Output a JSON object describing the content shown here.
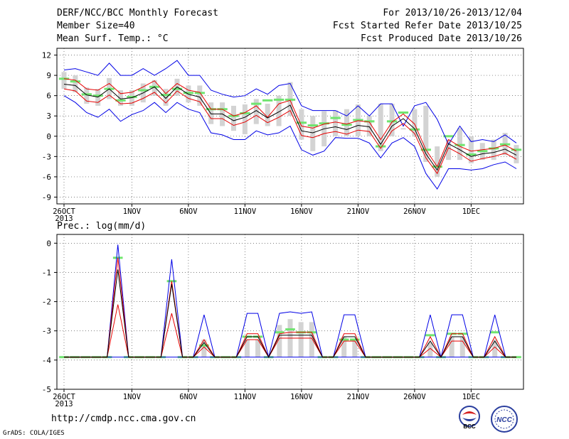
{
  "header": {
    "title": "DERF/NCC/BCC Monthly Forecast",
    "member_size": "Member Size=40",
    "variable": "Mean Surf. Temp.: °C",
    "for_range": "For 2013/10/26-2013/12/04",
    "started": "Fcst Started Refer Date 2013/10/25",
    "produced": "Fcst Produced Date 2013/10/26"
  },
  "footer": {
    "url": "http://cmdp.ncc.cma.gov.cn",
    "grads": "GrADS: COLA/IGES",
    "logo_left_text": "BCC",
    "logo_right_text": "NCC"
  },
  "colors": {
    "envelope": "#0000e6",
    "spread": "#e60000",
    "mean": "#000000",
    "median_marker": "#6fe46f",
    "box": "#d3d3d3",
    "grid": "#555555"
  },
  "chart_data": [
    {
      "type": "line",
      "title": "",
      "ylabel": "",
      "ylim": [
        -10,
        13
      ],
      "yticks": [
        12,
        9,
        6,
        3,
        0,
        -3,
        -6,
        -9
      ],
      "grid": true,
      "x_tick_labels": [
        "26OCT\n2013",
        "1NOV",
        "6NOV",
        "11NOV",
        "16NOV",
        "21NOV",
        "26NOV",
        "1DEC"
      ],
      "x_tick_days": [
        0,
        6,
        11,
        16,
        21,
        26,
        31,
        36
      ],
      "x_days": 40,
      "series": [
        {
          "role": "max",
          "values": [
            9.8,
            10,
            9.5,
            9,
            10.8,
            9,
            9,
            10,
            9,
            10,
            11.2,
            9,
            9,
            6.8,
            6.2,
            5.8,
            6,
            7,
            6.2,
            7.5,
            7.8,
            4.5,
            3.8,
            3.8,
            3.8,
            3,
            4.5,
            3,
            4.8,
            4.8,
            1.5,
            4.5,
            5,
            2.5,
            -1.2,
            1.5,
            -0.8,
            -0.5,
            -0.8,
            0.2,
            -1
          ]
        },
        {
          "role": "upper",
          "values": [
            8.5,
            8.3,
            7,
            6.8,
            7.8,
            6.3,
            6.5,
            7.3,
            8.2,
            6.3,
            7.8,
            6.8,
            6.5,
            4,
            4,
            3,
            3.5,
            4.5,
            2.8,
            4.8,
            5.3,
            1.5,
            1.2,
            1.8,
            2.1,
            1.8,
            2.3,
            2.1,
            -0.5,
            2.1,
            3.3,
            1.8,
            -2,
            -4.5,
            -0.5,
            -1.5,
            -2.2,
            -2,
            -1.8,
            -1.3,
            -2.2
          ]
        },
        {
          "role": "mean",
          "values": [
            7.7,
            7.5,
            6.1,
            5.8,
            7,
            5.5,
            5.7,
            6.4,
            7.3,
            5.6,
            7.3,
            6.2,
            5.8,
            3.3,
            3.3,
            2.3,
            2.8,
            3.8,
            2.7,
            3.6,
            4.6,
            0.8,
            0.5,
            1.1,
            1.4,
            1,
            1.6,
            1.4,
            -1.2,
            1.5,
            2.6,
            1.1,
            -2.6,
            -5,
            -1.1,
            -2,
            -3,
            -2.6,
            -2.4,
            -1.9,
            -2.8
          ]
        },
        {
          "role": "lower",
          "values": [
            7,
            6.7,
            5.2,
            5,
            6.1,
            4.8,
            4.9,
            5.6,
            6.5,
            4.9,
            6.7,
            5.6,
            5.1,
            2.6,
            2.6,
            1.6,
            2.1,
            3.1,
            2,
            2.8,
            3.8,
            0.1,
            -0.2,
            0.4,
            0.7,
            0.3,
            0.9,
            0.7,
            -1.8,
            0.8,
            1.9,
            0.4,
            -3.2,
            -5.5,
            -1.7,
            -2.6,
            -3.7,
            -3.3,
            -3,
            -2.5,
            -3.4
          ]
        },
        {
          "role": "min",
          "values": [
            6,
            5,
            3.5,
            2.8,
            4,
            2.2,
            3.2,
            3.8,
            5,
            3.5,
            5,
            4,
            3.5,
            0.5,
            0.2,
            -0.5,
            -0.5,
            0.8,
            0.2,
            0.5,
            1.5,
            -2,
            -2.8,
            -2.2,
            -0.2,
            -0.3,
            -0.3,
            -1,
            -3.2,
            -1,
            -0.2,
            -1.5,
            -5.5,
            -7.8,
            -4.8,
            -4.8,
            -5,
            -4.8,
            -4.2,
            -3.8,
            -4.8
          ]
        },
        {
          "role": "box_top",
          "values": [
            9.5,
            9,
            7.2,
            7,
            8.6,
            6.8,
            6.8,
            7.8,
            8.3,
            7,
            8.5,
            7.5,
            7.5,
            5,
            5,
            4.5,
            4.7,
            5.5,
            4.8,
            6,
            8,
            4,
            3,
            3.7,
            3.8,
            4,
            4.7,
            3,
            4.8,
            4.8,
            1.2,
            4,
            4.5,
            -1.5,
            -0.5,
            1.2,
            0,
            -1,
            -0.5,
            0.5,
            -1.3
          ]
        },
        {
          "role": "box_bottom",
          "values": [
            7,
            6.5,
            4.8,
            4.5,
            5.5,
            4.5,
            4.5,
            5,
            6,
            4.5,
            6,
            5,
            4.5,
            1.8,
            1.5,
            0.8,
            0.3,
            1.8,
            1.5,
            1.5,
            3,
            -0.5,
            -2.2,
            -1.5,
            0,
            0,
            0,
            0,
            -2.2,
            0,
            1,
            0,
            -3.8,
            -6,
            -3.5,
            -3.5,
            -4,
            -3.5,
            -3.5,
            -2.8,
            -4
          ]
        },
        {
          "role": "median",
          "values": [
            8.5,
            8.1,
            6.2,
            6,
            7,
            5.3,
            5.8,
            6.8,
            7.3,
            6.1,
            7,
            6.4,
            6.4,
            4,
            4,
            3,
            3.4,
            4.8,
            5.3,
            5.4,
            5.4,
            2,
            1.6,
            1.9,
            2.7,
            1.7,
            2.4,
            2.2,
            -1.5,
            2.2,
            3.5,
            1,
            -2,
            -4.5,
            0,
            -1.3,
            -2.7,
            -2.2,
            -1.8,
            -1.2,
            -2
          ]
        }
      ]
    },
    {
      "type": "line",
      "title": "Prec.: log(mm/d)",
      "ylabel": "",
      "ylim": [
        -5,
        0.3
      ],
      "yticks": [
        0,
        -1,
        -2,
        -3,
        -4,
        -5
      ],
      "grid": true,
      "x_tick_labels": [
        "26OCT\n2013",
        "1NOV",
        "6NOV",
        "11NOV",
        "16NOV",
        "21NOV",
        "26NOV",
        "1DEC"
      ],
      "x_tick_days": [
        0,
        6,
        11,
        16,
        21,
        26,
        31,
        36
      ],
      "x_days": 40,
      "series": [
        {
          "role": "max",
          "values": [
            -3.9,
            -3.9,
            -3.9,
            -3.9,
            -3.9,
            -0.05,
            -3.9,
            -3.9,
            -3.9,
            -3.9,
            -0.55,
            -3.9,
            -3.9,
            -2.45,
            -3.9,
            -3.9,
            -3.9,
            -2.4,
            -2.4,
            -3.9,
            -2.4,
            -2.35,
            -2.4,
            -2.35,
            -3.9,
            -3.9,
            -2.45,
            -2.45,
            -3.9,
            -3.9,
            -3.9,
            -3.9,
            -3.9,
            -3.9,
            -2.45,
            -3.9,
            -2.45,
            -2.45,
            -3.9,
            -3.9,
            -2.45,
            -3.9,
            -3.9
          ]
        },
        {
          "role": "upper",
          "values": [
            -3.9,
            -3.9,
            -3.9,
            -3.9,
            -3.9,
            -0.5,
            -3.9,
            -3.9,
            -3.9,
            -3.9,
            -1.3,
            -3.9,
            -3.9,
            -3.3,
            -3.9,
            -3.9,
            -3.9,
            -3.1,
            -3.1,
            -3.9,
            -3.1,
            -3.05,
            -3.05,
            -3.05,
            -3.9,
            -3.9,
            -3.1,
            -3.1,
            -3.9,
            -3.9,
            -3.9,
            -3.9,
            -3.9,
            -3.9,
            -3.2,
            -3.9,
            -3.1,
            -3.1,
            -3.9,
            -3.9,
            -3.2,
            -3.9,
            -3.9
          ]
        },
        {
          "role": "mean",
          "values": [
            -3.9,
            -3.9,
            -3.9,
            -3.9,
            -3.9,
            -0.9,
            -3.9,
            -3.9,
            -3.9,
            -3.9,
            -1.4,
            -3.9,
            -3.9,
            -3.4,
            -3.9,
            -3.9,
            -3.9,
            -3.2,
            -3.2,
            -3.9,
            -3.15,
            -3.15,
            -3.15,
            -3.15,
            -3.9,
            -3.9,
            -3.2,
            -3.2,
            -3.9,
            -3.9,
            -3.9,
            -3.9,
            -3.9,
            -3.9,
            -3.35,
            -3.9,
            -3.2,
            -3.2,
            -3.9,
            -3.9,
            -3.35,
            -3.9,
            -3.9
          ]
        },
        {
          "role": "lower",
          "values": [
            -3.9,
            -3.9,
            -3.9,
            -3.9,
            -3.9,
            -2.1,
            -3.9,
            -3.9,
            -3.9,
            -3.9,
            -2.4,
            -3.9,
            -3.9,
            -3.55,
            -3.9,
            -3.9,
            -3.9,
            -3.3,
            -3.3,
            -3.9,
            -3.25,
            -3.25,
            -3.25,
            -3.25,
            -3.9,
            -3.9,
            -3.35,
            -3.35,
            -3.9,
            -3.9,
            -3.9,
            -3.9,
            -3.9,
            -3.9,
            -3.6,
            -3.9,
            -3.35,
            -3.35,
            -3.9,
            -3.9,
            -3.55,
            -3.9,
            -3.9
          ]
        },
        {
          "role": "min",
          "values": [
            -3.9,
            -3.9,
            -3.9,
            -3.9,
            -3.9,
            -3.9,
            -3.9,
            -3.9,
            -3.9,
            -3.9,
            -3.9,
            -3.9,
            -3.9,
            -3.9,
            -3.9,
            -3.9,
            -3.9,
            -3.9,
            -3.9,
            -3.9,
            -3.9,
            -3.9,
            -3.9,
            -3.9,
            -3.9,
            -3.9,
            -3.9,
            -3.9,
            -3.9,
            -3.9,
            -3.9,
            -3.9,
            -3.9,
            -3.9,
            -3.9,
            -3.9,
            -3.9,
            -3.9,
            -3.9,
            -3.9,
            -3.9,
            -3.9,
            -3.9
          ]
        },
        {
          "role": "box_top",
          "values": [
            -3.9,
            -3.9,
            -3.9,
            -3.9,
            -3.9,
            -3.9,
            -3.9,
            -3.9,
            -3.9,
            -3.9,
            -3.9,
            -3.9,
            -3.9,
            -3.3,
            -3.9,
            -3.9,
            -3.9,
            -3.3,
            -3.3,
            -3.9,
            -2.8,
            -2.6,
            -2.7,
            -2.7,
            -3.9,
            -3.9,
            -3.2,
            -3.3,
            -3.9,
            -3.9,
            -3.9,
            -3.9,
            -3.9,
            -3.9,
            -3.4,
            -3.9,
            -3.2,
            -3.2,
            -3.9,
            -3.9,
            -3.3,
            -3.9,
            -3.9
          ]
        },
        {
          "role": "box_bottom",
          "values": [
            -3.9,
            -3.9,
            -3.9,
            -3.9,
            -3.9,
            -3.9,
            -3.9,
            -3.9,
            -3.9,
            -3.9,
            -3.9,
            -3.9,
            -3.9,
            -3.9,
            -3.9,
            -3.9,
            -3.9,
            -3.9,
            -3.9,
            -3.9,
            -3.9,
            -3.9,
            -3.9,
            -3.9,
            -3.9,
            -3.9,
            -3.9,
            -3.9,
            -3.9,
            -3.9,
            -3.9,
            -3.9,
            -3.9,
            -3.9,
            -3.9,
            -3.9,
            -3.9,
            -3.9,
            -3.9,
            -3.9,
            -3.9,
            -3.9,
            -3.9
          ]
        },
        {
          "role": "median",
          "values": [
            -3.9,
            -3.9,
            -3.9,
            -3.9,
            -3.9,
            -0.5,
            -3.9,
            -3.9,
            -3.9,
            -3.9,
            -1.3,
            -3.9,
            -3.9,
            -3.5,
            -3.9,
            -3.9,
            -3.9,
            -3.2,
            -3.2,
            -3.9,
            -3.05,
            -2.95,
            -3.05,
            -3.05,
            -3.9,
            -3.9,
            -3.3,
            -3.3,
            -3.9,
            -3.9,
            -3.9,
            -3.9,
            -3.9,
            -3.9,
            -3.15,
            -3.9,
            -3.1,
            -3.1,
            -3.9,
            -3.9,
            -3.05,
            -3.9,
            -3.9
          ]
        }
      ]
    }
  ]
}
